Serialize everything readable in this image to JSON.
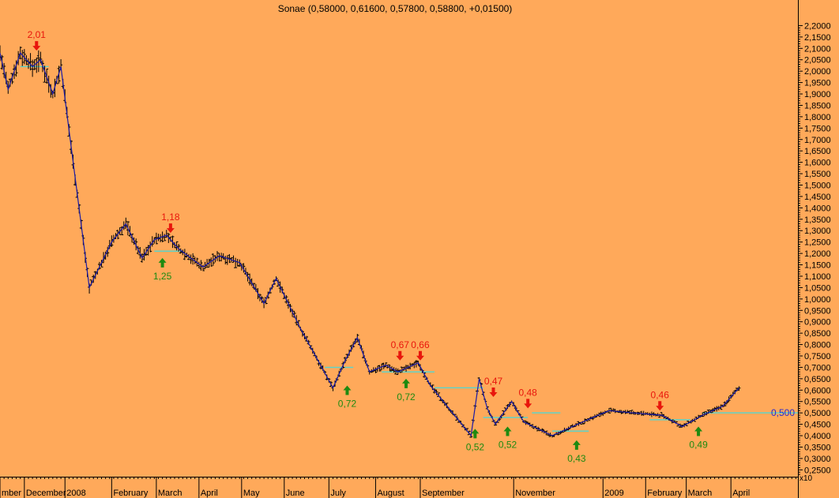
{
  "chart_data": {
    "type": "ohlc",
    "title": "Sonae (0,58000, 0,61600, 0,57800, 0,58800, +0,01500)",
    "colors": {
      "background": "#ffa95a",
      "bars": "#000000",
      "zigzag": "#1a1aa6",
      "level_lines": "#5fd3c8",
      "sell_signal": "#e8160c",
      "buy_signal": "#1e8a10",
      "last_label": "#2a2ad0"
    },
    "y_axis": {
      "ylim": [
        0.22,
        2.25
      ],
      "ticks": [
        "2,2000",
        "2,1500",
        "2,1000",
        "2,0500",
        "2,0000",
        "1,9500",
        "1,9000",
        "1,8500",
        "1,8000",
        "1,7500",
        "1,7000",
        "1,6500",
        "1,6000",
        "1,5500",
        "1,5000",
        "1,4500",
        "1,4000",
        "1,3500",
        "1,3000",
        "1,2500",
        "1,2000",
        "1,1500",
        "1,1000",
        "1,0500",
        "1,0000",
        "0,9500",
        "0,9000",
        "0,8500",
        "0,8000",
        "0,7500",
        "0,7000",
        "0,6500",
        "0,6000",
        "0,5500",
        "0,5000",
        "0,4500",
        "0,4000",
        "0,3500",
        "0,3000",
        "0,2500"
      ],
      "tick_values": [
        2.2,
        2.15,
        2.1,
        2.05,
        2.0,
        1.95,
        1.9,
        1.85,
        1.8,
        1.75,
        1.7,
        1.65,
        1.6,
        1.55,
        1.5,
        1.45,
        1.4,
        1.35,
        1.3,
        1.25,
        1.2,
        1.15,
        1.1,
        1.05,
        1.0,
        0.95,
        0.9,
        0.85,
        0.8,
        0.75,
        0.7,
        0.65,
        0.6,
        0.55,
        0.5,
        0.45,
        0.4,
        0.35,
        0.3,
        0.25
      ],
      "multiplier": "x10"
    },
    "x_axis": {
      "bar_range": [
        0,
        393
      ],
      "months": [
        {
          "label": "mber",
          "bar": 0
        },
        {
          "label": "December",
          "bar": 12
        },
        {
          "label": "2008",
          "bar": 32
        },
        {
          "label": "February",
          "bar": 55
        },
        {
          "label": "March",
          "bar": 77
        },
        {
          "label": "April",
          "bar": 98
        },
        {
          "label": "May",
          "bar": 119
        },
        {
          "label": "June",
          "bar": 140
        },
        {
          "label": "July",
          "bar": 162
        },
        {
          "label": "August",
          "bar": 185
        },
        {
          "label": "September",
          "bar": 207
        },
        {
          "label": "November",
          "bar": 253
        },
        {
          "label": "2009",
          "bar": 297
        },
        {
          "label": "February",
          "bar": 318
        },
        {
          "label": "March",
          "bar": 338
        },
        {
          "label": "April",
          "bar": 360
        }
      ]
    },
    "zigzag_points": [
      [
        0,
        2.08
      ],
      [
        4,
        1.92
      ],
      [
        10,
        2.08
      ],
      [
        16,
        2.02
      ],
      [
        20,
        2.05
      ],
      [
        26,
        1.9
      ],
      [
        30,
        2.02
      ],
      [
        34,
        1.74
      ],
      [
        44,
        1.05
      ],
      [
        55,
        1.25
      ],
      [
        62,
        1.33
      ],
      [
        70,
        1.18
      ],
      [
        76,
        1.26
      ],
      [
        82,
        1.28
      ],
      [
        88,
        1.22
      ],
      [
        100,
        1.14
      ],
      [
        108,
        1.19
      ],
      [
        118,
        1.16
      ],
      [
        130,
        0.98
      ],
      [
        136,
        1.09
      ],
      [
        148,
        0.87
      ],
      [
        164,
        0.61
      ],
      [
        170,
        0.73
      ],
      [
        176,
        0.83
      ],
      [
        182,
        0.68
      ],
      [
        190,
        0.71
      ],
      [
        196,
        0.68
      ],
      [
        206,
        0.72
      ],
      [
        212,
        0.62
      ],
      [
        232,
        0.4
      ],
      [
        236,
        0.65
      ],
      [
        240,
        0.52
      ],
      [
        244,
        0.45
      ],
      [
        252,
        0.55
      ],
      [
        258,
        0.46
      ],
      [
        272,
        0.4
      ],
      [
        282,
        0.44
      ],
      [
        292,
        0.48
      ],
      [
        300,
        0.51
      ],
      [
        312,
        0.5
      ],
      [
        326,
        0.49
      ],
      [
        336,
        0.44
      ],
      [
        346,
        0.49
      ],
      [
        356,
        0.53
      ],
      [
        364,
        0.61
      ]
    ],
    "level_segments": [
      {
        "from": 10,
        "to": 24,
        "y": 2.02
      },
      {
        "from": 76,
        "to": 90,
        "y": 1.21
      },
      {
        "from": 160,
        "to": 174,
        "y": 0.7
      },
      {
        "from": 188,
        "to": 214,
        "y": 0.68
      },
      {
        "from": 214,
        "to": 238,
        "y": 0.61
      },
      {
        "from": 238,
        "to": 260,
        "y": 0.48
      },
      {
        "from": 262,
        "to": 276,
        "y": 0.5
      },
      {
        "from": 272,
        "to": 290,
        "y": 0.42
      },
      {
        "from": 320,
        "to": 340,
        "y": 0.47
      },
      {
        "from": 346,
        "to": 364,
        "y": 0.5
      },
      {
        "from": 364,
        "to": 393,
        "y": 0.5
      }
    ],
    "signals": [
      {
        "type": "sell",
        "label": "2,01",
        "bar": 18,
        "y": 2.09
      },
      {
        "type": "sell",
        "label": "1,18",
        "bar": 84,
        "y": 1.29
      },
      {
        "type": "buy",
        "label": "1,25",
        "bar": 80,
        "y": 1.18
      },
      {
        "type": "buy",
        "label": "0,72",
        "bar": 171,
        "y": 0.62
      },
      {
        "type": "sell",
        "label": "0,67",
        "bar": 197,
        "y": 0.73
      },
      {
        "type": "buy",
        "label": "0,72",
        "bar": 200,
        "y": 0.65
      },
      {
        "type": "sell",
        "label": "0,66",
        "bar": 207,
        "y": 0.73
      },
      {
        "type": "sell",
        "label": "0,47",
        "bar": 243,
        "y": 0.57
      },
      {
        "type": "buy",
        "label": "0,52",
        "bar": 234,
        "y": 0.43
      },
      {
        "type": "sell",
        "label": "0,48",
        "bar": 260,
        "y": 0.52
      },
      {
        "type": "buy",
        "label": "0,52",
        "bar": 250,
        "y": 0.44
      },
      {
        "type": "buy",
        "label": "0,43",
        "bar": 284,
        "y": 0.38
      },
      {
        "type": "sell",
        "label": "0,46",
        "bar": 325,
        "y": 0.51
      },
      {
        "type": "buy",
        "label": "0,49",
        "bar": 344,
        "y": 0.44
      }
    ],
    "last_value_label": "0,500",
    "last_value": 0.5
  }
}
